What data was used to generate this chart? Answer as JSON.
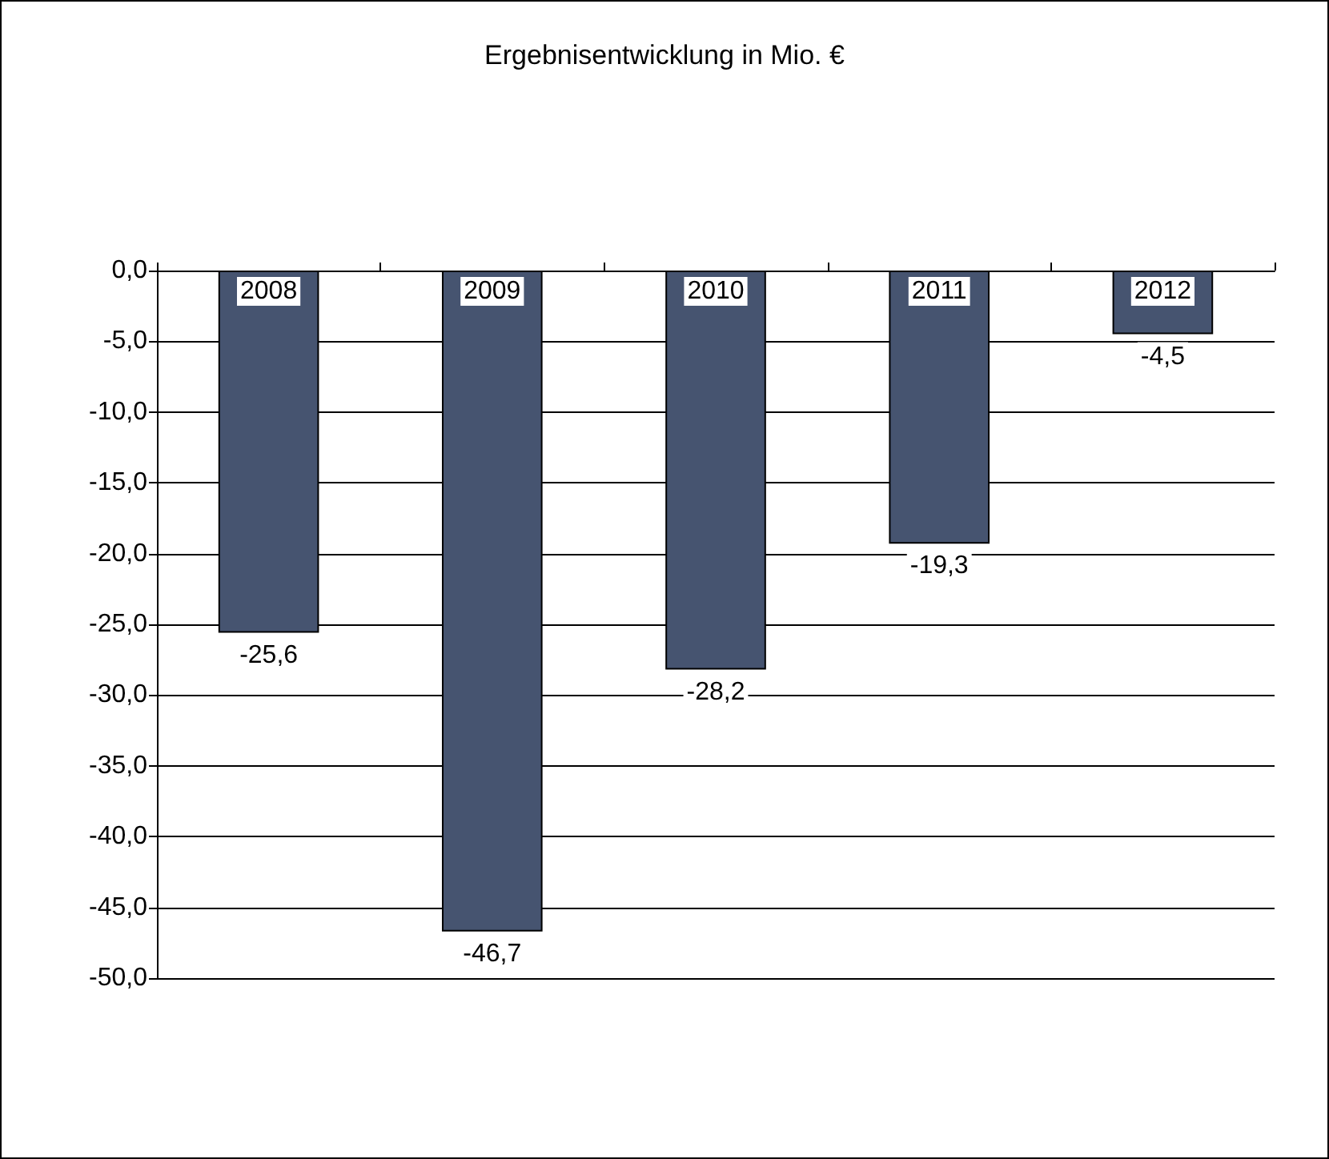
{
  "chart_data": {
    "type": "bar",
    "title": "Ergebnisentwicklung in Mio. €",
    "categories": [
      "2008",
      "2009",
      "2010",
      "2011",
      "2012"
    ],
    "values": [
      -25.6,
      -46.7,
      -28.2,
      -19.3,
      -4.5
    ],
    "value_labels": [
      "-25,6",
      "-46,7",
      "-28,2",
      "-19,3",
      "-4,5"
    ],
    "color": "#465470",
    "ylim": [
      -50,
      0
    ],
    "yticks": [
      {
        "value": 0,
        "label": "0,0"
      },
      {
        "value": -5,
        "label": "-5,0"
      },
      {
        "value": -10,
        "label": "-10,0"
      },
      {
        "value": -15,
        "label": "-15,0"
      },
      {
        "value": -20,
        "label": "-20,0"
      },
      {
        "value": -25,
        "label": "-25,0"
      },
      {
        "value": -30,
        "label": "-30,0"
      },
      {
        "value": -35,
        "label": "-35,0"
      },
      {
        "value": -40,
        "label": "-40,0"
      },
      {
        "value": -45,
        "label": "-45,0"
      },
      {
        "value": -50,
        "label": "-50,0"
      }
    ],
    "grid": "y"
  }
}
